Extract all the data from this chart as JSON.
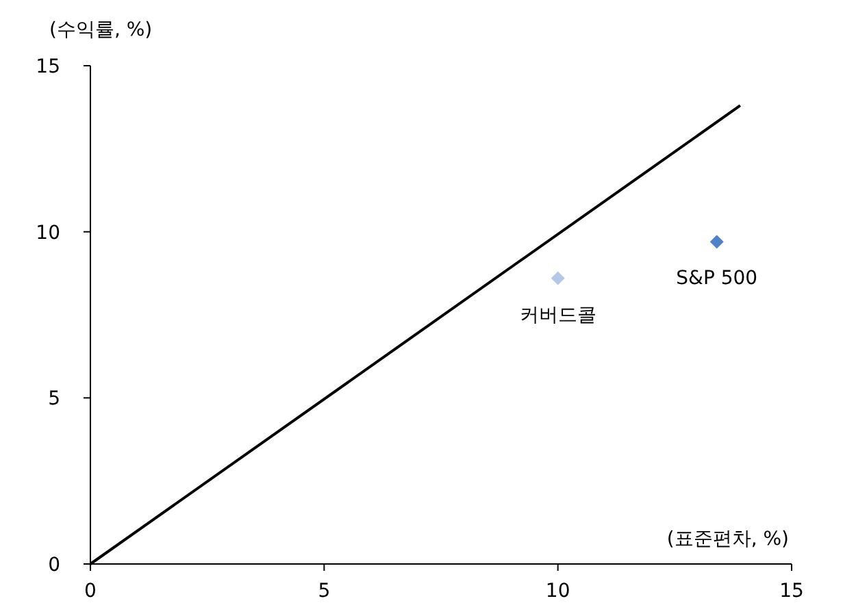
{
  "chart_data": {
    "type": "scatter",
    "xlabel": "(표준편차, %)",
    "ylabel": "(수익률, %)",
    "xlim": [
      0,
      15
    ],
    "ylim": [
      0,
      15
    ],
    "xticks": [
      0,
      5,
      10,
      15
    ],
    "yticks": [
      0,
      5,
      10,
      15
    ],
    "grid": false,
    "marker": "diamond",
    "series": [
      {
        "type": "line",
        "color": "#000000",
        "x": [
          0,
          13.9
        ],
        "values": [
          0,
          13.8
        ],
        "marker": "none"
      },
      {
        "name": "커버드콜",
        "color": "#b4c7e7",
        "x": [
          10.0
        ],
        "values": [
          8.6
        ]
      },
      {
        "name": "S&P 500",
        "color": "#4f81c7",
        "x": [
          13.4
        ],
        "values": [
          9.7
        ]
      }
    ]
  }
}
